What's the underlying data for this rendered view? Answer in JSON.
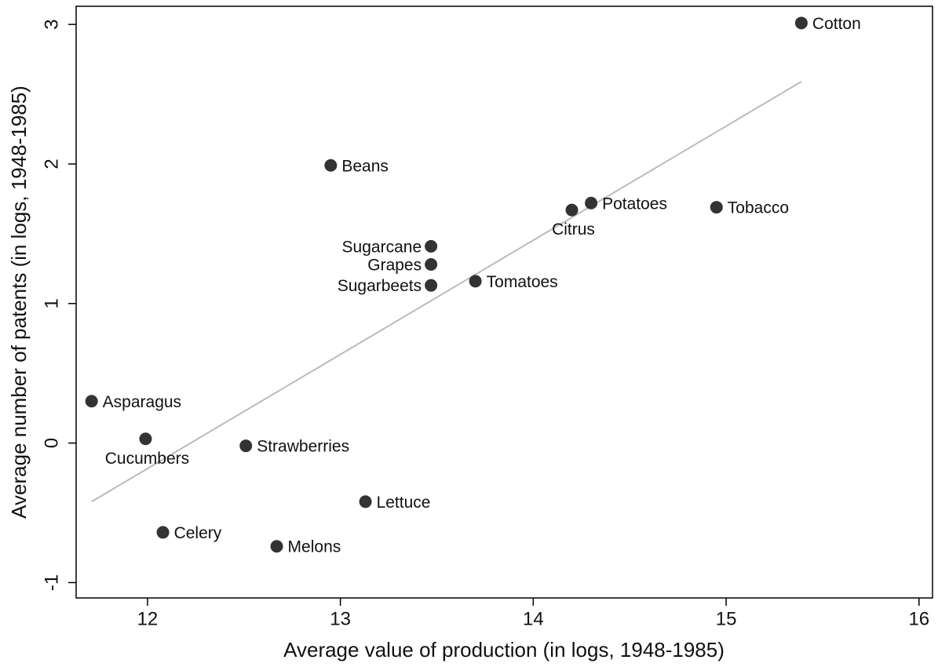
{
  "chart_data": {
    "type": "scatter",
    "x_label": "Average value of production (in logs, 1948-1985)",
    "y_label": "Average number of patents (in logs, 1948-1985)",
    "labels": [
      "Cotton",
      "Beans",
      "Potatoes",
      "Citrus",
      "Tobacco",
      "Sugarcane",
      "Grapes",
      "Sugarbeets",
      "Tomatoes",
      "Asparagus",
      "Cucumbers",
      "Strawberries",
      "Lettuce",
      "Celery",
      "Melons"
    ],
    "x": [
      15.39,
      12.95,
      14.3,
      14.2,
      14.95,
      13.47,
      13.47,
      13.47,
      13.7,
      11.71,
      11.99,
      12.51,
      13.13,
      12.08,
      12.67
    ],
    "values": [
      3.01,
      1.99,
      1.72,
      1.67,
      1.69,
      1.41,
      1.28,
      1.13,
      1.16,
      0.3,
      0.03,
      -0.02,
      -0.42,
      -0.64,
      -0.74
    ],
    "color": "#333333",
    "fit_line": {
      "x": [
        11.71,
        15.39
      ],
      "y": [
        -0.42,
        2.59
      ],
      "color": "#bbbbbb"
    },
    "xlim": [
      11.63,
      16.07
    ],
    "ylim": [
      -1.11,
      3.13
    ],
    "xticks": [
      12,
      13,
      14,
      15,
      16
    ],
    "yticks": [
      -1,
      0,
      1,
      2,
      3
    ]
  }
}
